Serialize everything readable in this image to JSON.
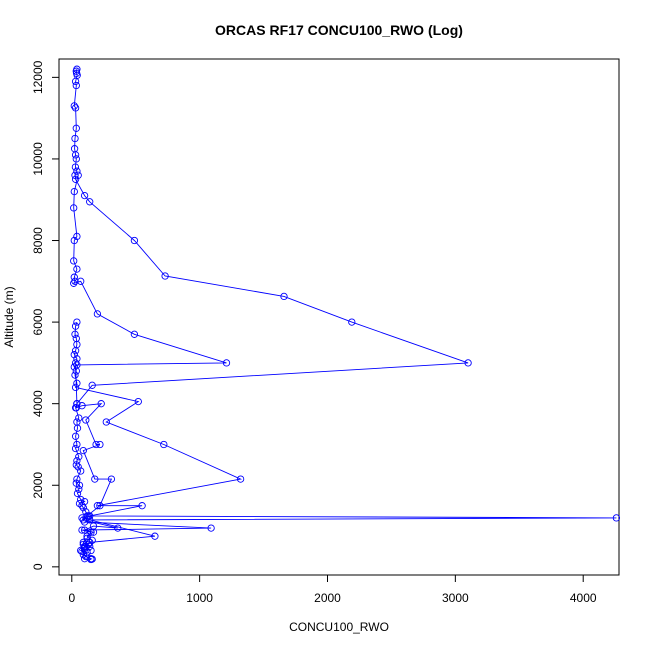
{
  "chart_data": {
    "type": "line",
    "title": "ORCAS RF17 CONCU100_RWO (Log)",
    "xlabel": "CONCU100_RWO",
    "ylabel": "Altitude (m)",
    "xlim": [
      -100,
      4280
    ],
    "ylim": [
      -200,
      12450
    ],
    "xticks": [
      0,
      1000,
      2000,
      3000,
      4000
    ],
    "yticks": [
      0,
      2000,
      4000,
      6000,
      8000,
      10000,
      12000
    ],
    "grid": false,
    "legend": "none",
    "colors": {
      "series": "#0000ff",
      "axis": "#000000"
    },
    "series": [
      {
        "marker": "open-circle",
        "points": [
          [
            40,
            12200
          ],
          [
            35,
            12150
          ],
          [
            38,
            12100
          ],
          [
            42,
            12050
          ],
          [
            30,
            11900
          ],
          [
            35,
            11800
          ],
          [
            20,
            11300
          ],
          [
            30,
            11250
          ],
          [
            35,
            10750
          ],
          [
            25,
            10500
          ],
          [
            22,
            10250
          ],
          [
            30,
            10100
          ],
          [
            35,
            10000
          ],
          [
            28,
            9800
          ],
          [
            40,
            9700
          ],
          [
            25,
            9600
          ],
          [
            30,
            9500
          ],
          [
            100,
            9100
          ],
          [
            140,
            8950
          ],
          [
            490,
            8000
          ],
          [
            730,
            7130
          ],
          [
            1660,
            6630
          ],
          [
            2190,
            6000
          ],
          [
            3100,
            5000
          ],
          [
            160,
            4450
          ],
          [
            40,
            4000
          ],
          [
            30,
            3900
          ],
          [
            55,
            3650
          ],
          [
            40,
            3550
          ],
          [
            45,
            3400
          ],
          [
            30,
            3200
          ],
          [
            40,
            3000
          ],
          [
            30,
            2900
          ],
          [
            55,
            2700
          ],
          [
            40,
            2600
          ],
          [
            35,
            2500
          ],
          [
            50,
            2450
          ],
          [
            70,
            2350
          ],
          [
            40,
            2150
          ],
          [
            35,
            2050
          ],
          [
            60,
            2000
          ],
          [
            55,
            1900
          ],
          [
            45,
            1800
          ],
          [
            70,
            1650
          ],
          [
            100,
            1600
          ],
          [
            60,
            1550
          ],
          [
            80,
            1500
          ],
          [
            90,
            1450
          ],
          [
            110,
            1350
          ],
          [
            130,
            1250
          ],
          [
            4260,
            1200
          ],
          [
            140,
            1150
          ],
          [
            100,
            1100
          ],
          [
            1090,
            950
          ],
          [
            80,
            900
          ],
          [
            150,
            850
          ],
          [
            120,
            700
          ],
          [
            90,
            600
          ],
          [
            140,
            500
          ],
          [
            100,
            450
          ],
          [
            80,
            380
          ],
          [
            110,
            250
          ],
          [
            150,
            200
          ],
          [
            160,
            190
          ]
        ]
      },
      {
        "marker": "open-circle",
        "points": [
          [
            50,
            9600
          ],
          [
            20,
            9200
          ],
          [
            15,
            8800
          ],
          [
            40,
            8100
          ],
          [
            20,
            8000
          ],
          [
            15,
            7500
          ],
          [
            40,
            7300
          ],
          [
            20,
            7100
          ],
          [
            25,
            7000
          ],
          [
            15,
            6950
          ],
          [
            70,
            7000
          ],
          [
            200,
            6200
          ],
          [
            490,
            5700
          ],
          [
            1210,
            5000
          ],
          [
            40,
            4950
          ],
          [
            20,
            4900
          ],
          [
            35,
            4800
          ],
          [
            25,
            4700
          ],
          [
            40,
            4500
          ],
          [
            30,
            4400
          ],
          [
            520,
            4050
          ],
          [
            270,
            3550
          ],
          [
            720,
            3000
          ],
          [
            1320,
            2150
          ],
          [
            200,
            1500
          ],
          [
            550,
            1500
          ],
          [
            140,
            1250
          ],
          [
            80,
            1200
          ],
          [
            650,
            750
          ],
          [
            140,
            600
          ],
          [
            90,
            550
          ],
          [
            100,
            500
          ],
          [
            70,
            400
          ],
          [
            120,
            350
          ],
          [
            90,
            300
          ],
          [
            100,
            200
          ],
          [
            150,
            180
          ]
        ]
      },
      {
        "marker": "open-circle",
        "points": [
          [
            40,
            6000
          ],
          [
            30,
            5900
          ],
          [
            25,
            5700
          ],
          [
            35,
            5600
          ],
          [
            40,
            5450
          ],
          [
            30,
            5300
          ],
          [
            20,
            5200
          ],
          [
            40,
            5100
          ],
          [
            30,
            5000
          ],
          [
            40,
            4000
          ],
          [
            35,
            3900
          ],
          [
            80,
            3950
          ],
          [
            230,
            4000
          ],
          [
            110,
            3600
          ],
          [
            190,
            3000
          ],
          [
            220,
            3000
          ],
          [
            90,
            2850
          ],
          [
            180,
            2150
          ],
          [
            310,
            2150
          ],
          [
            220,
            1500
          ],
          [
            120,
            1250
          ],
          [
            90,
            1150
          ],
          [
            360,
            950
          ],
          [
            170,
            1000
          ],
          [
            100,
            900
          ],
          [
            170,
            850
          ],
          [
            120,
            750
          ],
          [
            160,
            650
          ],
          [
            130,
            550
          ],
          [
            100,
            480
          ],
          [
            150,
            400
          ]
        ]
      }
    ]
  }
}
